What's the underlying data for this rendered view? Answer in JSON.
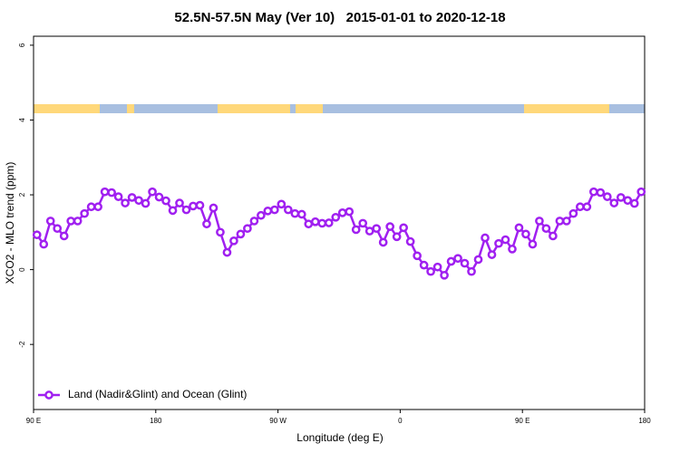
{
  "chart_data": {
    "type": "line",
    "title": "52.5N-57.5N May (Ver 10)   2015-01-01 to 2020-12-18",
    "xlabel": "Longitude (deg E)",
    "ylabel": "XCO2 - MLO trend (ppm)",
    "x": [
      92.5,
      97.5,
      102.5,
      107.5,
      112.5,
      117.5,
      122.5,
      127.5,
      132.5,
      137.5,
      142.5,
      147.5,
      152.5,
      157.5,
      162.5,
      167.5,
      172.5,
      177.5,
      182.5,
      187.5,
      192.5,
      197.5,
      202.5,
      207.5,
      212.5,
      217.5,
      222.5,
      227.5,
      232.5,
      237.5,
      242.5,
      247.5,
      252.5,
      257.5,
      262.5,
      267.5,
      272.5,
      277.5,
      282.5,
      287.5,
      292.5,
      297.5,
      302.5,
      307.5,
      312.5,
      317.5,
      322.5,
      327.5,
      332.5,
      337.5,
      342.5,
      347.5,
      352.5,
      357.5,
      362.5,
      367.5,
      372.5,
      377.5,
      382.5,
      387.5,
      392.5,
      397.5,
      402.5,
      407.5,
      412.5,
      417.5,
      422.5,
      427.5,
      432.5,
      437.5,
      442.5,
      447.5,
      452.5,
      457.5,
      462.5,
      467.5,
      472.5,
      477.5,
      482.5,
      487.5,
      492.5,
      497.5,
      502.5,
      507.5,
      512.5,
      517.5,
      522.5,
      527.5,
      532.5,
      537.5
    ],
    "series": [
      {
        "name": "Land (Nadir&Glint) and Ocean (Glint)",
        "color": "#a020f0",
        "values": [
          0.93,
          0.68,
          1.3,
          1.1,
          0.9,
          1.3,
          1.3,
          1.5,
          1.68,
          1.68,
          2.08,
          2.06,
          1.95,
          1.78,
          1.93,
          1.85,
          1.77,
          2.08,
          1.94,
          1.84,
          1.58,
          1.78,
          1.6,
          1.7,
          1.72,
          1.22,
          1.65,
          1.0,
          0.46,
          0.77,
          0.95,
          1.1,
          1.3,
          1.45,
          1.57,
          1.6,
          1.75,
          1.6,
          1.5,
          1.48,
          1.22,
          1.28,
          1.24,
          1.25,
          1.4,
          1.52,
          1.55,
          1.07,
          1.24,
          1.03,
          1.1,
          0.73,
          1.15,
          0.88,
          1.12,
          0.75,
          0.37,
          0.12,
          -0.05,
          0.07,
          -0.15,
          0.22,
          0.3,
          0.17,
          -0.05,
          0.27,
          0.85,
          0.4,
          0.7,
          0.8,
          0.55,
          1.12,
          0.95,
          0.68,
          1.3,
          1.1,
          0.9,
          1.3,
          1.3,
          1.5,
          1.68,
          1.68,
          2.08,
          2.06,
          1.95,
          1.78,
          1.93,
          1.85,
          1.77,
          2.08
        ]
      }
    ],
    "xlim": [
      90,
      540
    ],
    "xticks": [
      {
        "value": 90,
        "label": "90 E"
      },
      180,
      {
        "value": 270,
        "label": "90 W"
      },
      {
        "value": 360,
        "label": "0"
      },
      {
        "value": 450,
        "label": "90 E"
      },
      {
        "value": 540,
        "label": "180"
      }
    ],
    "ylim": [
      -3.74,
      6.24
    ],
    "yticks": [
      -2,
      0,
      2,
      4,
      6
    ],
    "legend": "bottomleft"
  }
}
